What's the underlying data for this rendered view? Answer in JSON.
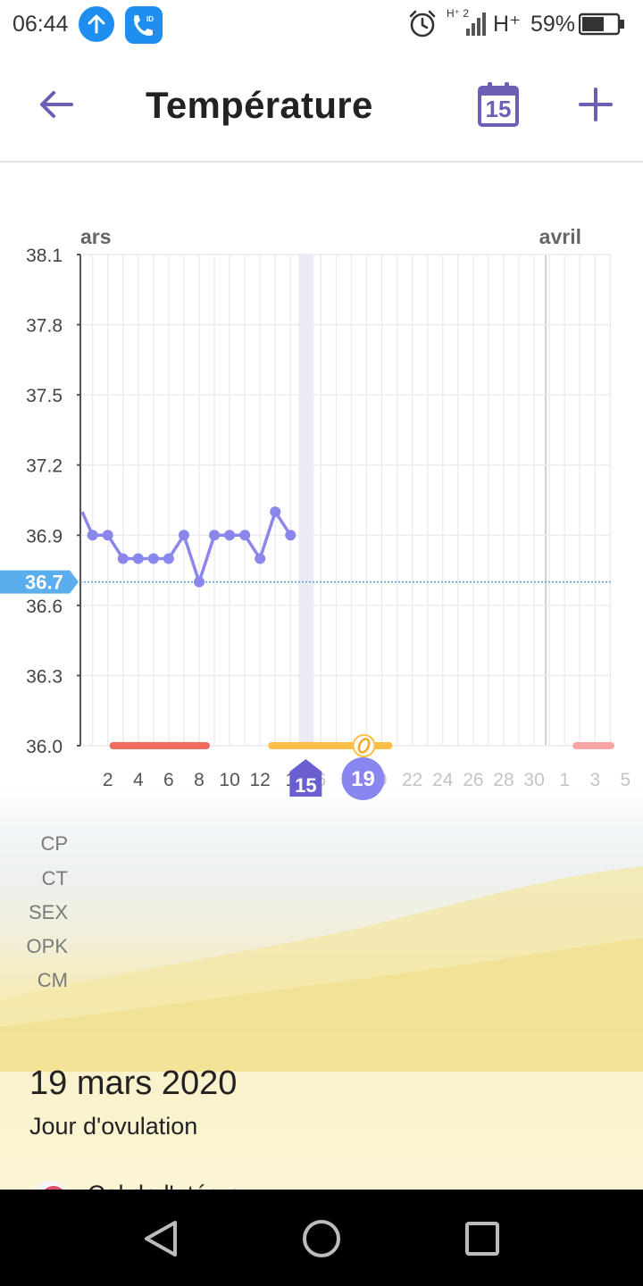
{
  "status": {
    "time": "06:44",
    "network": "H⁺",
    "signal_small": "H⁺ 2",
    "battery": "59%"
  },
  "header": {
    "title": "Température",
    "calendar_day": "15",
    "icons": [
      "back-arrow-icon",
      "calendar-icon",
      "plus-icon"
    ]
  },
  "chart_data": {
    "type": "line",
    "title": "",
    "months": [
      {
        "label": "ars",
        "x_day": 1.3
      },
      {
        "label": "avril",
        "x_day": 31
      }
    ],
    "y_ticks": [
      "38.1",
      "37.8",
      "37.5",
      "37.2",
      "36.9",
      "36.6",
      "36.3",
      "36.0"
    ],
    "ylim": [
      36.0,
      38.1
    ],
    "baseline": {
      "value": 36.7,
      "label": "36.7"
    },
    "x_tick_labels": [
      {
        "day": 2,
        "label": "2"
      },
      {
        "day": 4,
        "label": "4"
      },
      {
        "day": 6,
        "label": "6"
      },
      {
        "day": 8,
        "label": "8"
      },
      {
        "day": 10,
        "label": "10"
      },
      {
        "day": 12,
        "label": "12"
      },
      {
        "day": 14,
        "label": "1"
      },
      {
        "day": 16,
        "label": "6"
      },
      {
        "day": 18,
        "label": "1"
      },
      {
        "day": 20,
        "label": "0"
      },
      {
        "day": 22,
        "label": "22"
      },
      {
        "day": 24,
        "label": "24"
      },
      {
        "day": 26,
        "label": "26"
      },
      {
        "day": 28,
        "label": "28"
      },
      {
        "day": 30,
        "label": "30"
      },
      {
        "day": 32,
        "label": "1"
      },
      {
        "day": 34,
        "label": "3"
      },
      {
        "day": 36,
        "label": "5"
      }
    ],
    "series": [
      {
        "x": [
          1,
          2,
          3,
          4,
          5,
          6,
          7,
          8,
          9,
          10,
          11,
          12,
          13,
          14,
          15
        ],
        "y": [
          36.9,
          36.9,
          36.8,
          36.8,
          36.8,
          36.8,
          36.9,
          36.7,
          36.9,
          36.9,
          36.9,
          36.8,
          37.0,
          36.9,
          null
        ]
      }
    ],
    "highlight_today": {
      "day": 15,
      "label": "15"
    },
    "highlight_selected": {
      "day": 19,
      "label": "19"
    },
    "periods": [
      {
        "kind": "menstruation",
        "start": 2,
        "end": 8,
        "color": "#f06a5e"
      },
      {
        "kind": "fertile",
        "start": 13,
        "end": 20,
        "color": "#fbbf47"
      },
      {
        "kind": "predicted-menstruation",
        "start": 33,
        "end": 36,
        "color": "#f7a5a5"
      }
    ],
    "ovulation_day": 19
  },
  "rows": [
    "CP",
    "CT",
    "SEX",
    "OPK",
    "CM"
  ],
  "detail": {
    "date": "19 mars 2020",
    "subtitle": "Jour d'ovulation",
    "peek_text": "Col de l'utérus"
  },
  "colors": {
    "accent": "#6a5fb5",
    "line": "#8b86ec",
    "baseline": "#4aa3e8",
    "selected": "#8a86f0"
  }
}
